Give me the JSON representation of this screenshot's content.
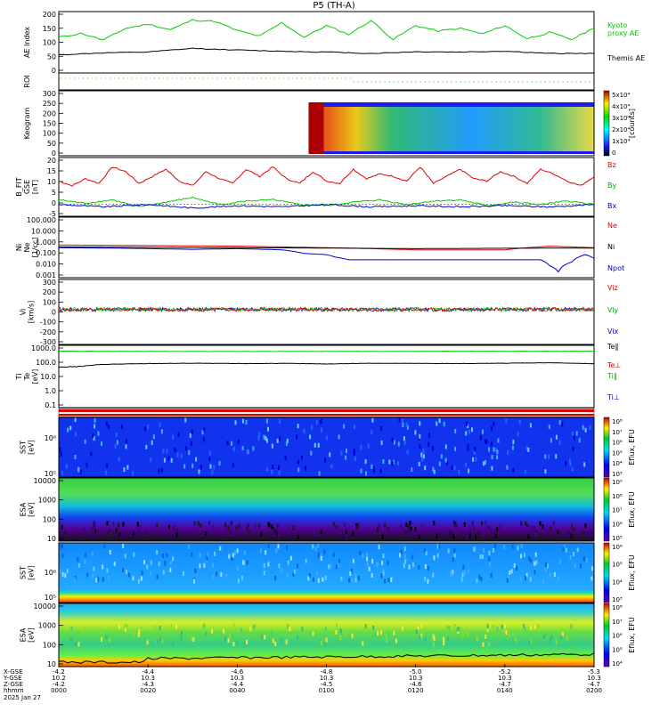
{
  "title": "P5  (TH-A)",
  "chart_data": {
    "type": "line",
    "title": "P5  (TH-A)",
    "date_label": "2025 Jan 27",
    "time_axis": {
      "row_labels": [
        "X-GSE",
        "Y-GSE",
        "Z-GSE",
        "hhmm"
      ],
      "ticks": [
        {
          "x": "-4.2",
          "y": "10.2",
          "z": "-4.2",
          "time": "0000"
        },
        {
          "x": "-4.4",
          "y": "10.3",
          "z": "-4.3",
          "time": "0020"
        },
        {
          "x": "-4.6",
          "y": "10.3",
          "z": "-4.4",
          "time": "0040"
        },
        {
          "x": "-4.8",
          "y": "10.3",
          "z": "-4.5",
          "time": "0100"
        },
        {
          "x": "-5.0",
          "y": "10.3",
          "z": "-4.6",
          "time": "0120"
        },
        {
          "x": "-5.2",
          "y": "10.3",
          "z": "-4.7",
          "time": "0140"
        },
        {
          "x": "-5.3",
          "y": "10.3",
          "z": "-4.7",
          "time": "0200"
        }
      ]
    },
    "panels": [
      {
        "id": "ae",
        "ylabel": "AE Index",
        "ylim": [
          -20,
          200
        ],
        "yticks": [
          "200",
          "150",
          "100",
          "50",
          "0"
        ],
        "legend": [
          "Kyoto",
          "proxy AE",
          "Themis AE"
        ],
        "series": [
          {
            "name": "proxy AE",
            "color": "#00cc00",
            "t": [
              0,
              5,
              10,
              15,
              20,
              25,
              30,
              35,
              40,
              45,
              50,
              55,
              60,
              65,
              70,
              75,
              80,
              85,
              90,
              95,
              100,
              105,
              110,
              115,
              120
            ],
            "values": [
              108,
              122,
              98,
              140,
              155,
              135,
              170,
              165,
              132,
              112,
              160,
              108,
              150,
              118,
              168,
              100,
              150,
              130,
              140,
              120,
              150,
              103,
              125,
              100,
              142
            ]
          },
          {
            "name": "Themis AE",
            "color": "#000000",
            "t": [
              0,
              10,
              20,
              30,
              40,
              50,
              60,
              70,
              80,
              90,
              100,
              110,
              120
            ],
            "values": [
              45,
              52,
              55,
              68,
              62,
              58,
              55,
              50,
              56,
              55,
              58,
              50,
              50
            ]
          }
        ]
      },
      {
        "id": "roi",
        "ylabel": "ROI",
        "note": "region-of-interest flags"
      },
      {
        "id": "keogram",
        "ylabel": "Keogram",
        "ylim": [
          0,
          300
        ],
        "yticks": [
          "300",
          "250",
          "200",
          "150",
          "100",
          "50",
          "0"
        ],
        "colorbar": {
          "label": "[counts]",
          "ticks": [
            "5x10⁴",
            "4x10⁴",
            "3x10⁴",
            "2x10⁴",
            "1x10⁴",
            "0"
          ]
        },
        "data_start_t": 56
      },
      {
        "id": "b",
        "ylabel": "B_FIT [nT]",
        "ylabel_lines": [
          "B_FIT",
          "GSE",
          "[nT]"
        ],
        "ylim": [
          -5,
          20
        ],
        "yticks": [
          "20",
          "15",
          "10",
          "5",
          "0",
          "-5"
        ],
        "legend": [
          "Bz",
          "By",
          "Bx"
        ],
        "series": [
          {
            "name": "Bz",
            "color": "#dd0000",
            "t": [
              0,
              3,
              6,
              9,
              12,
              15,
              18,
              21,
              24,
              27,
              30,
              33,
              36,
              39,
              42,
              45,
              48,
              51,
              54,
              57,
              60,
              63,
              66,
              69,
              72,
              75,
              78,
              81,
              84,
              87,
              90,
              93,
              96,
              99,
              102,
              105,
              108,
              111,
              114,
              117,
              120
            ],
            "values": [
              10,
              8,
              11,
              9,
              16,
              14,
              9,
              12,
              15,
              10,
              8,
              14,
              11,
              9,
              15,
              12,
              16,
              11,
              9,
              14,
              10,
              9,
              15,
              11,
              13,
              12,
              10,
              16,
              9,
              12,
              15,
              11,
              10,
              14,
              12,
              9,
              15,
              13,
              10,
              8,
              12
            ]
          },
          {
            "name": "By",
            "color": "#00cc00",
            "t": [
              0,
              6,
              12,
              18,
              24,
              30,
              36,
              42,
              48,
              54,
              60,
              66,
              72,
              78,
              84,
              90,
              96,
              102,
              108,
              114,
              120
            ],
            "values": [
              2,
              0.5,
              2,
              -1,
              1,
              3,
              0,
              1.5,
              2,
              0,
              -0.5,
              1,
              2,
              0,
              1.5,
              2,
              -0.5,
              1,
              0,
              1.5,
              0
            ]
          },
          {
            "name": "Bx",
            "color": "#0000cc",
            "t": [
              0,
              10,
              20,
              30,
              40,
              50,
              60,
              70,
              80,
              90,
              100,
              110,
              120
            ],
            "values": [
              0,
              -1,
              0,
              -1.5,
              -0.5,
              -1,
              0,
              -1,
              -0.5,
              -1,
              -0.5,
              -1,
              0
            ]
          }
        ]
      },
      {
        "id": "n",
        "ylabel": "Ni [1/cc]",
        "ylabel_lines": [
          "Ni",
          "Ne",
          "[1/cc]"
        ],
        "scale": "log",
        "ylim": [
          0.001,
          100
        ],
        "yticks": [
          "100.000",
          "10.000",
          "1.000",
          "0.100",
          "0.010",
          "0.001"
        ],
        "legend": [
          "Ne",
          "Ni",
          "Npot"
        ],
        "series": [
          {
            "name": "Ne",
            "color": "#dd0000",
            "t": [
              0,
              20,
              40,
              60,
              80,
              100,
              110,
              120
            ],
            "values": [
              0.5,
              0.45,
              0.4,
              0.3,
              0.2,
              0.2,
              0.4,
              0.3
            ]
          },
          {
            "name": "Ni",
            "color": "#000000",
            "t": [
              0,
              20,
              40,
              60,
              80,
              100,
              120
            ],
            "values": [
              0.35,
              0.32,
              0.3,
              0.28,
              0.25,
              0.27,
              0.28
            ]
          },
          {
            "name": "Npot",
            "color": "#0000cc",
            "t": [
              0,
              10,
              20,
              30,
              40,
              50,
              55,
              60,
              62,
              65,
              70,
              80,
              90,
              100,
              108,
              110,
              112,
              115,
              118,
              120
            ],
            "values": [
              0.3,
              0.28,
              0.25,
              0.22,
              0.25,
              0.2,
              0.1,
              0.08,
              0.05,
              0.03,
              0.03,
              0.03,
              0.03,
              0.03,
              0.03,
              0.01,
              0.003,
              0.02,
              0.08,
              0.04
            ]
          }
        ]
      },
      {
        "id": "v",
        "ylabel": "Vi [km/s]",
        "ylabel_lines": [
          "Vi",
          "[km/s]"
        ],
        "ylim": [
          -350,
          300
        ],
        "yticks": [
          "300",
          "200",
          "100",
          "0",
          "-100",
          "-200",
          "-300"
        ],
        "legend": [
          "Viz",
          "Viy",
          "Vix"
        ],
        "series": [
          {
            "name": "Vix",
            "color": "#0000cc",
            "mean": 0,
            "noise": 40
          },
          {
            "name": "Viy",
            "color": "#00cc00",
            "mean": 0,
            "noise": 40
          },
          {
            "name": "Viz",
            "color": "#dd0000",
            "mean": 0,
            "noise": 30
          }
        ]
      },
      {
        "id": "t",
        "ylabel": "Ti [eV]",
        "ylabel_lines": [
          "Ti",
          "Te",
          "[eV]"
        ],
        "scale": "log",
        "ylim": [
          0.05,
          10000
        ],
        "yticks": [
          "1000.0",
          "100.0",
          "10.0",
          "1.0",
          "0.1"
        ],
        "legend": [
          "Te‖",
          "Te⊥",
          "Ti‖",
          "Ti⊥"
        ],
        "series": [
          {
            "name": "Ti",
            "color": "#00cc00",
            "t": [
              0,
              40,
              80,
              120
            ],
            "values": [
              3200,
              3000,
              3100,
              3200
            ]
          },
          {
            "name": "Te",
            "color": "#000000",
            "t": [
              0,
              5,
              10,
              20,
              30,
              40,
              50,
              60,
              70,
              80,
              90,
              100,
              110,
              120
            ],
            "values": [
              140,
              160,
              240,
              280,
              300,
              280,
              290,
              260,
              300,
              290,
              280,
              300,
              330,
              270
            ]
          }
        ]
      },
      {
        "id": "flags",
        "note": "red/white status bar"
      },
      {
        "id": "sst_e",
        "type": "heatmap",
        "ylabel": "SST [eV]",
        "ylabel_lines": [
          "SST",
          "[eV]"
        ],
        "yticks": [
          "10⁶",
          "10⁵"
        ],
        "colorbar": {
          "label": "Eflux, EFU",
          "ticks": [
            "10⁸",
            "10⁷",
            "10⁶",
            "10⁵",
            "10⁴",
            "10³"
          ]
        }
      },
      {
        "id": "esa_e",
        "type": "heatmap",
        "ylabel": "ESA [eV]",
        "ylabel_lines": [
          "ESA",
          "[eV]"
        ],
        "yticks": [
          "10000",
          "1000",
          "100",
          "10"
        ],
        "colorbar": {
          "label": "Eflux, EFU",
          "ticks": [
            "10⁹",
            "10⁸",
            "10⁷",
            "10⁶",
            "10⁵"
          ]
        }
      },
      {
        "id": "sst_i",
        "type": "heatmap",
        "ylabel": "SST [eV]",
        "ylabel_lines": [
          "SST",
          "[eV]"
        ],
        "yticks": [
          "10⁶",
          "10⁵"
        ],
        "colorbar": {
          "label": "Eflux, EFU",
          "ticks": [
            "10⁶",
            "10⁵",
            "10⁴",
            "10³"
          ]
        }
      },
      {
        "id": "esa_i",
        "type": "heatmap",
        "ylabel": "ESA [eV]",
        "ylabel_lines": [
          "ESA",
          "[eV]"
        ],
        "yticks": [
          "10000",
          "1000",
          "100",
          "10"
        ],
        "colorbar": {
          "label": "Eflux, EFU",
          "ticks": [
            "10⁸",
            "10⁷",
            "10⁶",
            "10⁵",
            "10⁴"
          ]
        }
      }
    ]
  }
}
